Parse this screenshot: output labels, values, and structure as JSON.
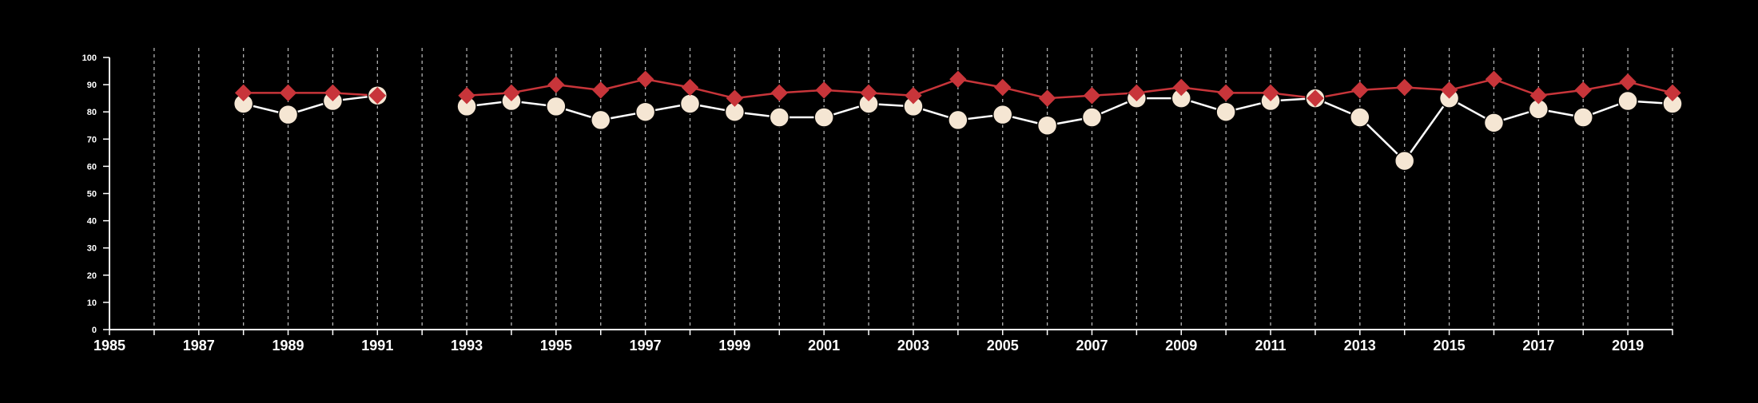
{
  "chart_data": {
    "type": "line",
    "title": "",
    "xlabel": "",
    "ylabel": "",
    "x": [
      1988,
      1989,
      1990,
      1991,
      1993,
      1994,
      1995,
      1996,
      1997,
      1998,
      1999,
      2000,
      2001,
      2002,
      2003,
      2004,
      2005,
      2006,
      2007,
      2008,
      2009,
      2010,
      2011,
      2012,
      2013,
      2014,
      2015,
      2016,
      2017,
      2018,
      2019,
      2020
    ],
    "xlim": [
      1985,
      2020
    ],
    "ylim": [
      0,
      100
    ],
    "xticks": [
      1985,
      1987,
      1989,
      1991,
      1993,
      1995,
      1997,
      1999,
      2001,
      2003,
      2005,
      2007,
      2009,
      2011,
      2013,
      2015,
      2017,
      2019
    ],
    "yticks": [
      0,
      10,
      20,
      30,
      40,
      50,
      60,
      70,
      80,
      90,
      100
    ],
    "vertical_dashed_gridlines": true,
    "background_color": "#000000",
    "series": [
      {
        "marker": "diamond",
        "line_color": "#c8353a",
        "marker_color": "#c8353a",
        "values": [
          87,
          87,
          87,
          86,
          86,
          87,
          90,
          88,
          92,
          89,
          85,
          87,
          88,
          87,
          86,
          92,
          89,
          85,
          86,
          87,
          89,
          87,
          87,
          85,
          88,
          89,
          88,
          92,
          86,
          88,
          91,
          87
        ]
      },
      {
        "marker": "circle",
        "line_color": "#ffffff",
        "marker_color": "#f5e6d3",
        "values": [
          83,
          79,
          84,
          86,
          82,
          84,
          82,
          77,
          80,
          83,
          80,
          78,
          78,
          83,
          82,
          77,
          79,
          75,
          78,
          85,
          85,
          80,
          84,
          85,
          78,
          62,
          85,
          76,
          81,
          78,
          84,
          83
        ]
      }
    ]
  }
}
